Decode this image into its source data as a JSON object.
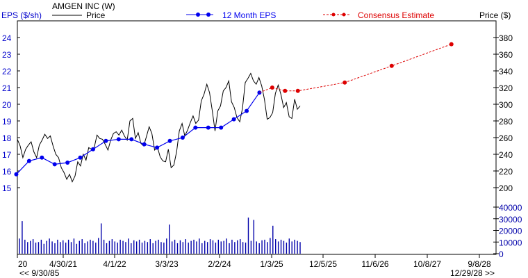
{
  "chart_data": {
    "type": "line",
    "legend": {
      "placement": "top",
      "left_axis_label": "EPS ($/sh)",
      "company": "AMGEN INC (W)",
      "price_label": "Price",
      "eps_label": "12 Month EPS",
      "consensus_label": "Consensus Estimate",
      "right_axis_label": "Price ($)"
    },
    "colors": {
      "eps": "#0000ee",
      "consensus": "#dd0000",
      "price": "#000000",
      "volume": "#0000aa",
      "left_axis_text": "#0000cc",
      "right_axis_text": "#000000",
      "volume_axis_text": "#0000aa"
    },
    "x_axis": {
      "ticks": [
        "20",
        "4/30/21",
        "4/1/22",
        "3/3/23",
        "2/2/24",
        "1/3/25",
        "12/5/25",
        "11/6/26",
        "10/8/27",
        "9/8/28"
      ],
      "range_start_label": "<< 9/30/85",
      "range_end_label": "12/29/28 >>"
    },
    "left_axis": {
      "ylim": [
        15,
        24
      ],
      "ticks": [
        "15",
        "16",
        "17",
        "18",
        "19",
        "20",
        "21",
        "22",
        "23",
        "24"
      ]
    },
    "right_axis": {
      "ylim": [
        200,
        380
      ],
      "ticks": [
        "200",
        "220",
        "240",
        "260",
        "280",
        "300",
        "320",
        "340",
        "360",
        "380"
      ]
    },
    "volume_axis": {
      "ylim": [
        0,
        40000
      ],
      "ticks": [
        "0",
        "10000",
        "20000",
        "30000",
        "40000"
      ]
    },
    "eps_series": {
      "name": "12 Month EPS",
      "points": [
        [
          "6/2020",
          15.8
        ],
        [
          "9/2020",
          16.6
        ],
        [
          "12/2020",
          16.8
        ],
        [
          "3/2021",
          16.4
        ],
        [
          "6/2021",
          16.5
        ],
        [
          "9/2021",
          16.8
        ],
        [
          "12/2021",
          17.3
        ],
        [
          "3/2022",
          17.8
        ],
        [
          "6/2022",
          17.9
        ],
        [
          "9/2022",
          17.9
        ],
        [
          "12/2022",
          17.6
        ],
        [
          "3/2023",
          17.4
        ],
        [
          "6/2023",
          17.8
        ],
        [
          "9/2023",
          18.0
        ],
        [
          "12/2023",
          18.6
        ],
        [
          "3/2024",
          18.6
        ],
        [
          "6/2024",
          18.6
        ],
        [
          "9/2024",
          19.1
        ],
        [
          "12/2024",
          19.6
        ],
        [
          "3/2025",
          20.7
        ]
      ]
    },
    "consensus_series": {
      "name": "Consensus Estimate",
      "points": [
        [
          "6/2025",
          21.0
        ],
        [
          "9/2025",
          20.8
        ],
        [
          "12/2025",
          20.8
        ],
        [
          "11/2026",
          21.3
        ],
        [
          "10/2027",
          22.3
        ],
        [
          "12/2028",
          23.6
        ]
      ]
    },
    "price_series": {
      "name": "Price",
      "values": [
        258,
        250,
        236,
        246,
        251,
        255,
        243,
        236,
        251,
        257,
        264,
        259,
        262,
        250,
        240,
        236,
        224,
        218,
        210,
        216,
        207,
        214,
        231,
        226,
        240,
        233,
        248,
        246,
        248,
        263,
        259,
        258,
        252,
        245,
        257,
        265,
        267,
        263,
        269,
        262,
        257,
        280,
        283,
        259,
        266,
        253,
        250,
        261,
        273,
        265,
        245,
        249,
        237,
        232,
        231,
        246,
        224,
        227,
        243,
        268,
        277,
        262,
        269,
        278,
        286,
        277,
        281,
        304,
        312,
        324,
        314,
        292,
        268,
        292,
        298,
        316,
        320,
        328,
        303,
        296,
        284,
        279,
        295,
        326,
        331,
        337,
        328,
        324,
        332,
        322,
        306,
        282,
        284,
        290,
        313,
        323,
        312,
        296,
        302,
        285,
        283,
        306,
        294,
        298
      ]
    },
    "volume_series": {
      "name": "Volume",
      "values": [
        13000,
        9000,
        12000,
        10000,
        11000,
        12500,
        9500,
        10000,
        12000,
        8500,
        11000,
        13000,
        10500,
        9000,
        12000,
        10000,
        11500,
        9500,
        12000,
        10000,
        13000,
        8500,
        11000,
        12500,
        9000,
        10500,
        12000,
        11000,
        9500,
        13500,
        10000,
        12000,
        9000,
        11000,
        12500,
        10500,
        9500,
        12000,
        11000,
        10000,
        13000,
        9000,
        11500,
        10500,
        12000,
        9500,
        11000,
        10000,
        12500,
        9000,
        11000,
        12000,
        10000,
        9500,
        13000,
        11000,
        10500,
        12000,
        9000,
        11500,
        10000,
        12500,
        9500,
        11000,
        12000,
        10500,
        13000,
        9000,
        11000,
        10000,
        12500,
        11500,
        9500,
        12000,
        10500,
        11000,
        13000,
        9000,
        12000,
        10000,
        11500,
        12500,
        10000,
        9500,
        13000,
        11000,
        12000,
        10500,
        9000,
        11500,
        12000,
        10000,
        13500,
        11000,
        12500,
        10500,
        12000,
        11000,
        9500,
        13000,
        10500,
        12000,
        11000,
        10000
      ],
      "peaks": [
        [
          1,
          28000
        ],
        [
          30,
          26000
        ],
        [
          55,
          25000
        ],
        [
          84,
          31000
        ],
        [
          86,
          29000
        ],
        [
          93,
          24000
        ]
      ]
    }
  }
}
